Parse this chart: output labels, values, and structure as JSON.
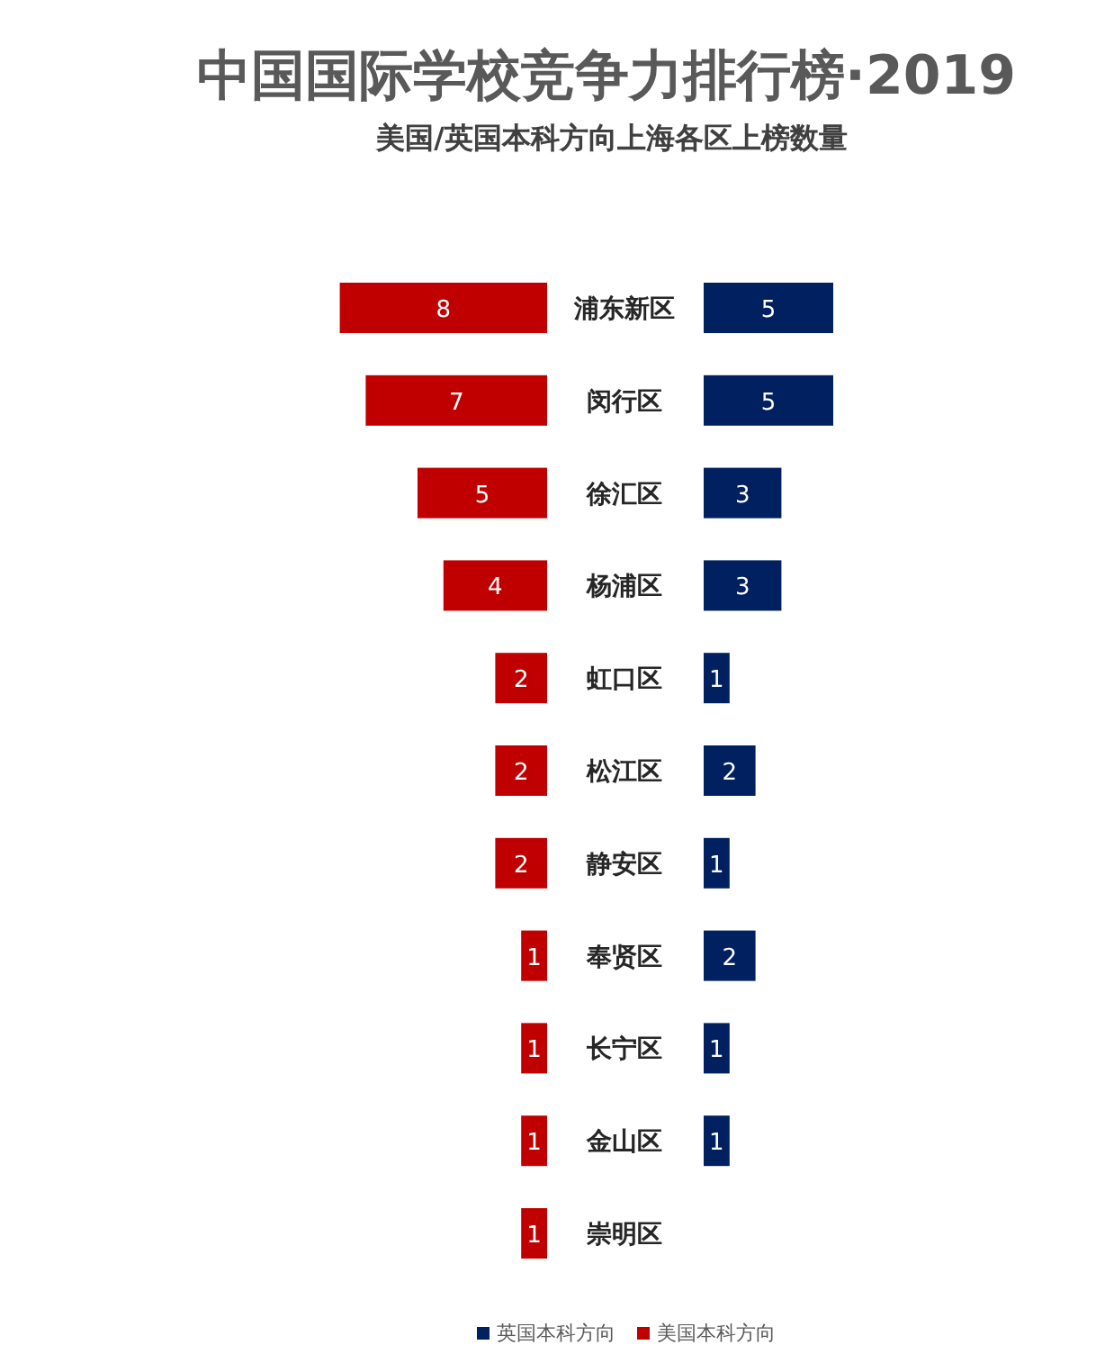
{
  "chart_data": [
    {
      "type": "bar",
      "orientation": "horizontal",
      "title": "中国国际学校竞争力排行榜·2019",
      "subtitle": "美国/英国本科方向上海各区上榜数量",
      "categories": [
        "浦东新区",
        "闵行区",
        "徐汇区",
        "杨浦区",
        "虹口区",
        "松江区",
        "静安区",
        "奉贤区",
        "长宁区",
        "金山区",
        "崇明区"
      ],
      "series": [
        {
          "name": "美国本科方向",
          "color": "#c00000",
          "values": [
            8,
            7,
            5,
            4,
            2,
            2,
            2,
            1,
            1,
            1,
            1
          ]
        }
      ],
      "data_labels": true,
      "legend": "bottom"
    },
    {
      "type": "bar",
      "orientation": "horizontal",
      "categories": [
        null,
        null,
        null,
        null,
        null,
        null,
        null,
        null,
        null,
        null,
        null
      ],
      "series": [
        {
          "name": "英国本科方向",
          "color": "#002060",
          "values": [
            5,
            5,
            3,
            3,
            1,
            2,
            1,
            2,
            1,
            1,
            null
          ]
        }
      ],
      "data_labels": true,
      "legend": "bottom"
    }
  ]
}
